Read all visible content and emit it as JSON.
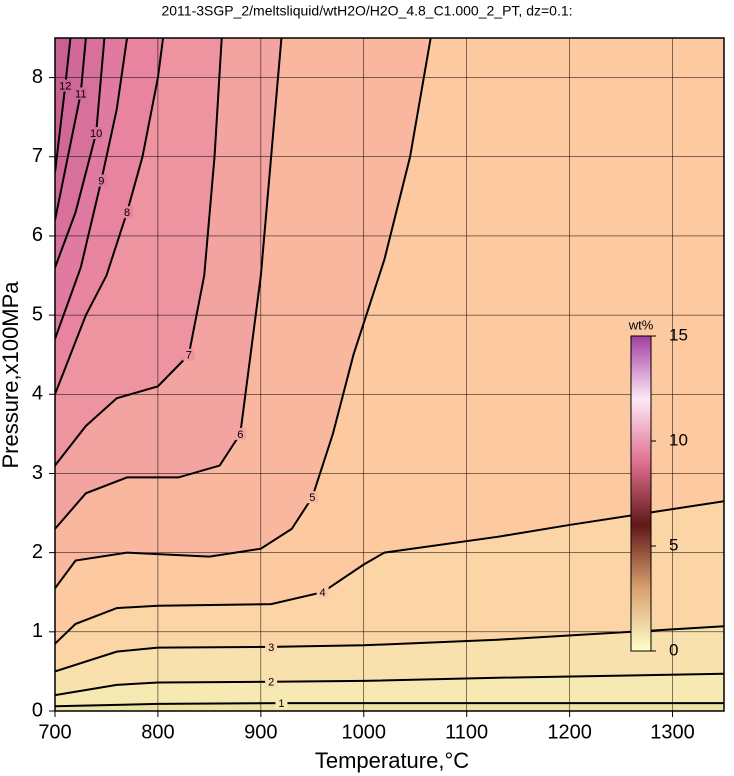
{
  "chart_data": {
    "type": "contour",
    "title": "2011-3SGP_2/meltsliquid/wtH2O/H2O_4.8_C1.000_2_PT, dz=0.1:",
    "x_label": "Temperature,°C",
    "y_label": "Pressure,x100MPa",
    "xlim": [
      700,
      1350
    ],
    "ylim": [
      0,
      8.5
    ],
    "xticks": [
      700,
      800,
      900,
      1000,
      1100,
      1200,
      1300
    ],
    "yticks": [
      0,
      1,
      2,
      3,
      4,
      5,
      6,
      7,
      8
    ],
    "grid": true,
    "contours": [
      {
        "level": 1,
        "color": "#f6e9b2",
        "x": [
          700,
          800,
          920,
          1130,
          1350
        ],
        "y": [
          0.06,
          0.09,
          0.1,
          0.1,
          0.1
        ]
      },
      {
        "level": 2,
        "color": "#f9e1ad",
        "x": [
          700,
          760,
          800,
          910,
          1000,
          1130,
          1350
        ],
        "y": [
          0.2,
          0.33,
          0.36,
          0.37,
          0.38,
          0.42,
          0.47
        ]
      },
      {
        "level": 3,
        "color": "#fbd5a6",
        "x": [
          700,
          760,
          800,
          910,
          1000,
          1130,
          1350
        ],
        "y": [
          0.5,
          0.75,
          0.8,
          0.81,
          0.83,
          0.9,
          1.07
        ]
      },
      {
        "level": 4,
        "color": "#fcc9a0",
        "x": [
          700,
          720,
          760,
          800,
          910,
          960,
          1000,
          1020,
          1130,
          1200,
          1350
        ],
        "y": [
          0.85,
          1.1,
          1.3,
          1.33,
          1.35,
          1.5,
          1.85,
          2.0,
          2.2,
          2.35,
          2.65
        ]
      },
      {
        "level": 5,
        "color": "#f9b7a0",
        "x": [
          700,
          720,
          770,
          850,
          900,
          930,
          950,
          970,
          990,
          1020,
          1045,
          1065
        ],
        "y": [
          1.55,
          1.9,
          2.0,
          1.95,
          2.05,
          2.3,
          2.7,
          3.5,
          4.5,
          5.7,
          7,
          8.5
        ]
      },
      {
        "level": 6,
        "color": "#f4a4a0",
        "x": [
          700,
          730,
          770,
          820,
          860,
          880,
          890,
          900,
          910,
          920
        ],
        "y": [
          2.3,
          2.75,
          2.95,
          2.95,
          3.1,
          3.5,
          4.5,
          5.5,
          7,
          8.5
        ]
      },
      {
        "level": 7,
        "color": "#ee93a0",
        "x": [
          700,
          730,
          760,
          800,
          830,
          845,
          855,
          862
        ],
        "y": [
          3.1,
          3.6,
          3.95,
          4.1,
          4.5,
          5.5,
          7,
          8.5
        ]
      },
      {
        "level": 8,
        "color": "#e884a0",
        "x": [
          700,
          730,
          750,
          770,
          785,
          800,
          805
        ],
        "y": [
          4,
          5,
          5.5,
          6.3,
          7,
          8,
          8.5
        ]
      },
      {
        "level": 9,
        "color": "#e07aa0",
        "x": [
          700,
          725,
          745,
          760,
          770
        ],
        "y": [
          4.7,
          5.6,
          6.7,
          7.6,
          8.5
        ]
      },
      {
        "level": 10,
        "color": "#d8709c",
        "x": [
          700,
          720,
          740,
          748
        ],
        "y": [
          5.6,
          6.3,
          7.3,
          8.5
        ]
      },
      {
        "level": 11,
        "color": "#d06898",
        "x": [
          700,
          725,
          730
        ],
        "y": [
          6.2,
          7.8,
          8.5
        ]
      },
      {
        "level": 12,
        "color": "#c86090",
        "x": [
          700,
          710,
          715
        ],
        "y": [
          6.8,
          7.9,
          8.5
        ]
      }
    ],
    "colorbar": {
      "label": "wt%",
      "lim": [
        0,
        15
      ],
      "ticks": [
        0,
        5,
        10,
        15
      ],
      "colors": [
        "#ffffc8",
        "#d8a070",
        "#601818",
        "#e07090",
        "#ffe8f8",
        "#a040a0"
      ]
    }
  }
}
